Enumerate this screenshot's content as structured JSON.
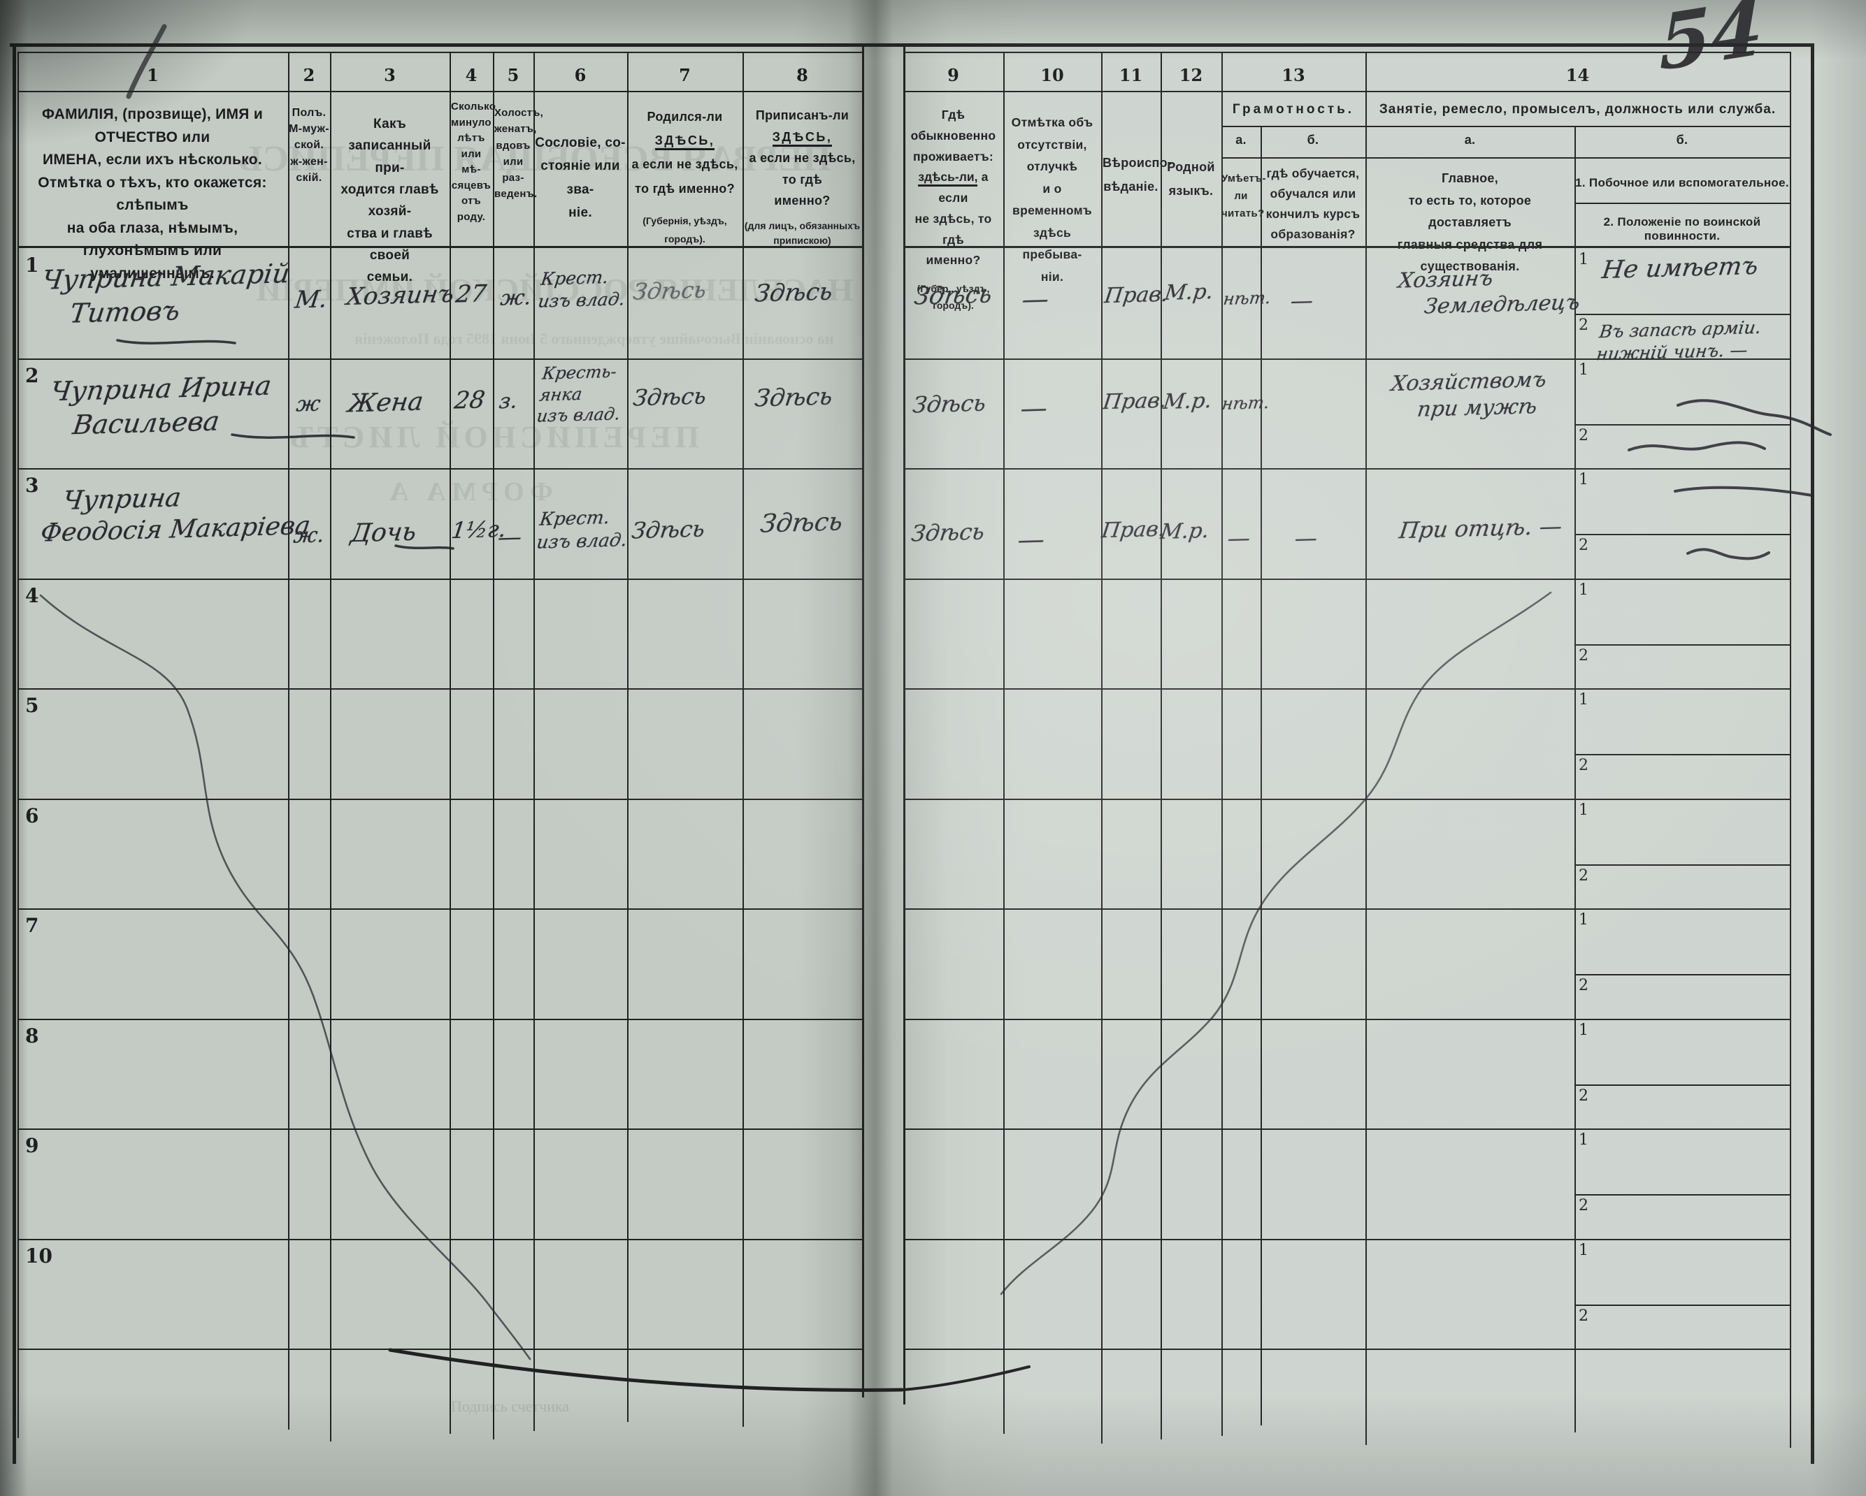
{
  "page": {
    "folio_number": "54"
  },
  "colors": {
    "paper": "#ccd3cd",
    "line": "#1c1c1e",
    "print_ink": "#17171a",
    "hand_ink": "#26262d"
  },
  "header": {
    "c1": {
      "num": "1",
      "lines": [
        "ФАМИЛІЯ, (прозвище), ИМЯ и ОТЧЕСТВО или",
        "ИМЕНА, если ихъ нѣсколько.",
        "Отмѣтка о тѣхъ, кто окажется: слѣпымъ",
        "на оба глаза, нѣмымъ, глухонѣмымъ или",
        "умалишеннымъ."
      ]
    },
    "c2": {
      "num": "2",
      "lines": [
        "Полъ.",
        "М-муж-",
        "ской.",
        "ж-жен-",
        "скій."
      ]
    },
    "c3": {
      "num": "3",
      "lines": [
        "Какъ записанный при-",
        "ходится главѣ хозяй-",
        "ства и главѣ своей",
        "семьи."
      ]
    },
    "c4": {
      "num": "4",
      "lines": [
        "Сколько",
        "минуло",
        "лѣтъ",
        "или мѣ-",
        "сяцевъ",
        "отъ роду."
      ]
    },
    "c5": {
      "num": "5",
      "lines": [
        "Холостъ,",
        "женатъ,",
        "вдовъ",
        "или раз-",
        "веденъ."
      ]
    },
    "c6": {
      "num": "6",
      "lines": [
        "Сословіе, со-",
        "стояніе или зва-",
        "ніе."
      ]
    },
    "c7": {
      "num": "7",
      "l1_prefix": "Родился-ли ",
      "l1_word": "ЗДѢСЬ,",
      "lines": [
        "а если не здѣсь,",
        "то гдѣ именно?"
      ],
      "small": "(Губернія, уѣздъ, городъ)."
    },
    "c8": {
      "num": "8",
      "l1_prefix": "Приписанъ-ли ",
      "l1_word": "ЗДѢСЬ,",
      "lines": [
        "а если не здѣсь, то гдѣ",
        "именно?"
      ],
      "small_lines": [
        "(для лицъ, обязанныхъ",
        "припискою)"
      ]
    },
    "c9": {
      "num": "9",
      "lines_top": [
        "Гдѣ обыкновенно",
        "проживаетъ:"
      ],
      "l3_word": "здѣсь-ли,",
      "l3_rest": " а если",
      "lines": [
        "не здѣсь, то гдѣ",
        "именно?"
      ],
      "small": "(Губер., уѣздъ, городъ)."
    },
    "c10": {
      "num": "10",
      "lines": [
        "Отмѣтка объ",
        "отсутствіи, отлучкѣ",
        "и о временномъ",
        "здѣсь пребыва-",
        "ніи."
      ]
    },
    "c11": {
      "num": "11",
      "lines": [
        "Вѣроиспо-",
        "вѣданіе."
      ]
    },
    "c12": {
      "num": "12",
      "lines": [
        "Родной",
        "языкъ."
      ]
    },
    "c13": {
      "num": "13",
      "title": "Грамотность.",
      "a_label": "а.",
      "b_label": "б.",
      "a_lines": [
        "Умѣетъ-",
        "ли",
        "читать?"
      ],
      "b_lines": [
        "гдѣ обучается,",
        "обучался или",
        "кончилъ курсъ",
        "образованія?"
      ]
    },
    "c14": {
      "num": "14",
      "title": "Занятіе, ремесло, промыселъ, должность или служба.",
      "a_label": "а.",
      "b_label": "б.",
      "a_lines": [
        "Главное,",
        "то есть то, которое доставляетъ",
        "главныя средства для существованія."
      ],
      "b1": "1.  Побочное  или  вспомогательное.",
      "b2": "2. Положеніе по воинской повинности."
    }
  },
  "sub_row_labels": [
    "1",
    "2"
  ],
  "rows": [
    {
      "num": "1",
      "name_lines": [
        "Чуприна Макарій",
        "Титовъ"
      ],
      "sex": "М.",
      "relation": "Хозяинъ",
      "age": "27",
      "marital": "ж.",
      "estate_lines": [
        "Крест.",
        "изъ влад."
      ],
      "born": "Здѣсь",
      "registered": "Здѣсь",
      "resides": "Здѣсь",
      "absence": "—",
      "religion": "Прав.",
      "language": "М.р.",
      "literacy_read": "нѣт.",
      "literacy_where": "—",
      "occupation_lines": [
        "Хозяинъ",
        "Земледѣлецъ"
      ],
      "side_occupation": "Не имѣетъ",
      "military_lines": [
        "Въ запасѣ арміи.",
        "нижній чинъ. —"
      ]
    },
    {
      "num": "2",
      "name_lines": [
        "Чуприна Ирина",
        "Васильева"
      ],
      "sex": "ж",
      "relation": "Жена",
      "age": "28",
      "marital": "з.",
      "estate_lines": [
        "Кресть-",
        "янка",
        "изъ влад."
      ],
      "born": "Здѣсь",
      "registered": "Здѣсь",
      "resides": "Здѣсь",
      "absence": "—",
      "religion": "Прав.",
      "language": "М.р.",
      "literacy_read": "нѣт.",
      "occupation_lines": [
        "Хозяйствомъ",
        "при мужѣ"
      ]
    },
    {
      "num": "3",
      "name_lines": [
        "Чуприна",
        "Феодосія Макаріева"
      ],
      "sex": "ж.",
      "relation": "Дочь",
      "age": "1½г.",
      "marital": "—",
      "estate_lines": [
        "Крест.",
        "изъ влад."
      ],
      "born": "Здѣсь",
      "registered": "Здѣсь",
      "resides": "Здѣсь",
      "absence": "—",
      "religion": "Прав.",
      "language": "М.р.",
      "literacy_read": "—",
      "literacy_where": "—",
      "occupation_lines": [
        "При отцѣ. —"
      ]
    },
    {
      "num": "4"
    },
    {
      "num": "5"
    },
    {
      "num": "6"
    },
    {
      "num": "7"
    },
    {
      "num": "8"
    },
    {
      "num": "9"
    },
    {
      "num": "10"
    }
  ],
  "bleedthrough": {
    "line1": "ПЕРВАЯ ВСЕОБЩАЯ ПЕРЕПИСЬ",
    "line2": "НАСЕЛЕНІЯ РОССІЙСКОЙ ИМПЕРІИ",
    "line3": "на основаніи Высочайше утвержденнаго 5 Іюня 1895 года Положенія",
    "line4": "ПЕРЕПИСНОЙ ЛИСТЪ",
    "line5": "ФОРМА А",
    "line6": "Подпись счетчика"
  }
}
